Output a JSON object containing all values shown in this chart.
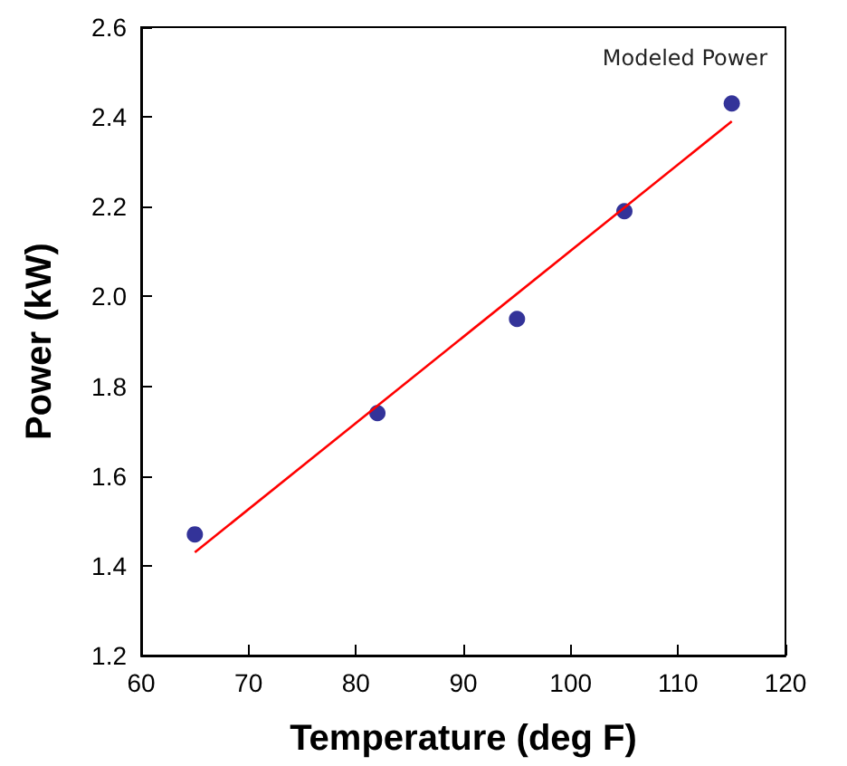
{
  "chart_data": {
    "type": "scatter",
    "xlabel": "Temperature (deg F)",
    "ylabel": "Power (kW)",
    "x": [
      65,
      82,
      95,
      105,
      115
    ],
    "series": [
      {
        "color": "#000080",
        "marker": "circle",
        "values": [
          1.47,
          1.74,
          1.95,
          2.19,
          2.43
        ]
      },
      {
        "type": "line",
        "color": "#ff0000",
        "marker": "none",
        "x": [
          65,
          115
        ],
        "values": [
          1.43,
          2.39
        ]
      }
    ],
    "annotations": [
      "Modeled Power"
    ],
    "xlim": [
      60,
      120
    ],
    "xticks": [
      60,
      70,
      80,
      90,
      100,
      110,
      120
    ],
    "ylim": [
      1.2,
      2.6
    ],
    "yticks": [
      {
        "value": 1.2,
        "label": "1.2"
      },
      {
        "value": 1.4,
        "label": "1.4"
      },
      {
        "value": 1.6,
        "label": "1.6"
      },
      {
        "value": 1.8,
        "label": "1.8"
      },
      {
        "value": 2,
        "label": "2.0"
      },
      {
        "value": 2.2,
        "label": "2.2"
      },
      {
        "value": 2.4,
        "label": "2.4"
      },
      {
        "value": 2.6,
        "label": "2.6"
      }
    ],
    "grid": false
  }
}
